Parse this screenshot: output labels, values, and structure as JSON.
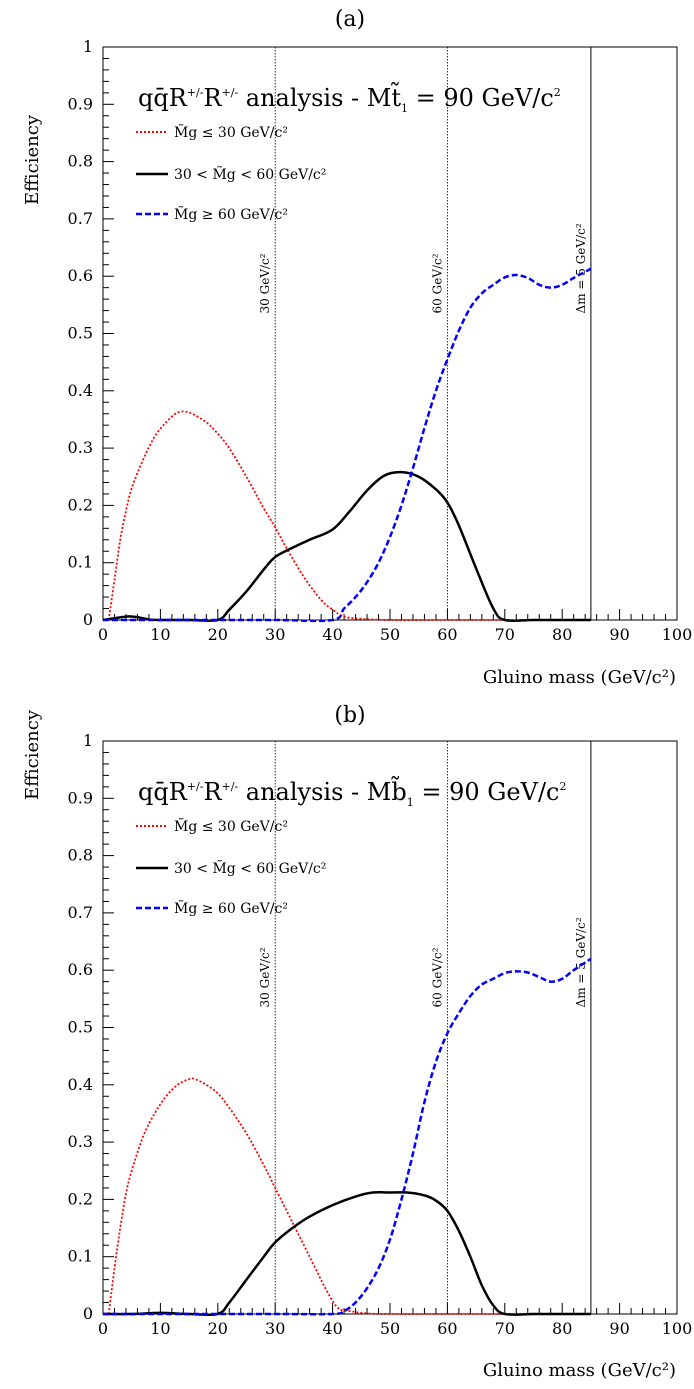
{
  "chart_data": [
    {
      "type": "line",
      "panel_label": "(a)",
      "title": {
        "main": "qq̄R",
        "sup1": "+/-",
        "mid": "R",
        "sup2": "+/-",
        "rest": " analysis - M",
        "tilde_letter": "t̃",
        "sub": "1",
        "eq": " = 90 GeV/c",
        "sup3": "2"
      },
      "xlabel": "Gluino mass (GeV/c²)",
      "ylabel": "Efficiency",
      "xlim": [
        0,
        100
      ],
      "ylim": [
        0,
        1
      ],
      "xticks": [
        "0",
        "10",
        "20",
        "30",
        "40",
        "50",
        "60",
        "70",
        "80",
        "90",
        "100"
      ],
      "yticks": [
        "0",
        "0.1",
        "0.2",
        "0.3",
        "0.4",
        "0.5",
        "0.6",
        "0.7",
        "0.8",
        "0.9",
        "1"
      ],
      "vlines": [
        {
          "x": 30,
          "label": "30 GeV/c²",
          "style": "dotted"
        },
        {
          "x": 60,
          "label": "60 GeV/c²",
          "style": "dotted"
        },
        {
          "x": 85,
          "label": "Δm = 5 GeV/c²",
          "style": "solid"
        }
      ],
      "series": [
        {
          "name": "M̃g ≤ 30 GeV/c²",
          "color": "#ff0000",
          "style": "dotted",
          "x": [
            1,
            2,
            3,
            4,
            5,
            7,
            9,
            11,
            13,
            15,
            18,
            20,
            22,
            25,
            28,
            30,
            32,
            35,
            38,
            40,
            42,
            45,
            50,
            60,
            70,
            80,
            85
          ],
          "y": [
            0.0,
            0.07,
            0.14,
            0.19,
            0.23,
            0.28,
            0.32,
            0.345,
            0.362,
            0.362,
            0.345,
            0.325,
            0.3,
            0.25,
            0.195,
            0.162,
            0.125,
            0.075,
            0.035,
            0.018,
            0.006,
            0.002,
            0.0,
            0.0,
            0.0,
            0.0,
            0.0
          ]
        },
        {
          "name": "30 < M̃g < 60 GeV/c²",
          "color": "#000000",
          "style": "solid",
          "x": [
            0,
            2,
            4,
            5,
            6,
            8,
            10,
            15,
            20,
            22,
            25,
            28,
            30,
            33,
            36,
            40,
            43,
            46,
            49,
            52,
            55,
            58,
            60,
            62,
            65,
            68,
            70,
            75,
            80,
            85
          ],
          "y": [
            0.0,
            0.003,
            0.006,
            0.006,
            0.005,
            0.001,
            0.0,
            0.0,
            0.0,
            0.018,
            0.05,
            0.088,
            0.11,
            0.126,
            0.14,
            0.158,
            0.19,
            0.226,
            0.252,
            0.258,
            0.25,
            0.228,
            0.205,
            0.165,
            0.09,
            0.02,
            0.0,
            0.0,
            0.0,
            0.0
          ]
        },
        {
          "name": "M̃g ≥ 60 GeV/c²",
          "color": "#0000ff",
          "style": "dashed",
          "x": [
            0,
            10,
            20,
            30,
            40,
            42,
            44,
            46,
            48,
            50,
            52,
            54,
            56,
            58,
            60,
            62,
            64,
            66,
            68,
            70,
            72,
            74,
            76,
            78,
            80,
            82,
            85
          ],
          "y": [
            0.0,
            0.0,
            0.0,
            0.0,
            0.0,
            0.02,
            0.04,
            0.066,
            0.1,
            0.145,
            0.2,
            0.265,
            0.335,
            0.4,
            0.455,
            0.505,
            0.545,
            0.57,
            0.585,
            0.598,
            0.602,
            0.597,
            0.585,
            0.58,
            0.585,
            0.597,
            0.613
          ]
        }
      ]
    },
    {
      "type": "line",
      "panel_label": "(b)",
      "title": {
        "main": "qq̄R",
        "sup1": "+/-",
        "mid": "R",
        "sup2": "+/-",
        "rest": " analysis - M",
        "tilde_letter": "b̃",
        "sub": "1",
        "eq": " = 90 GeV/c",
        "sup3": "2"
      },
      "xlabel": "Gluino mass (GeV/c²)",
      "ylabel": "Efficiency",
      "xlim": [
        0,
        100
      ],
      "ylim": [
        0,
        1
      ],
      "xticks": [
        "0",
        "10",
        "20",
        "30",
        "40",
        "50",
        "60",
        "70",
        "80",
        "90",
        "100"
      ],
      "yticks": [
        "0",
        "0.1",
        "0.2",
        "0.3",
        "0.4",
        "0.5",
        "0.6",
        "0.7",
        "0.8",
        "0.9",
        "1"
      ],
      "vlines": [
        {
          "x": 30,
          "label": "30 GeV/c²",
          "style": "dotted"
        },
        {
          "x": 60,
          "label": "60 GeV/c²",
          "style": "dotted"
        },
        {
          "x": 85,
          "label": "Δm = 5 GeV/c²",
          "style": "solid"
        }
      ],
      "series": [
        {
          "name": "M̃g ≤ 30 GeV/c²",
          "color": "#ff0000",
          "style": "dotted",
          "x": [
            1,
            2,
            3,
            4,
            5,
            7,
            9,
            11,
            13,
            15,
            16,
            18,
            20,
            22,
            25,
            28,
            30,
            33,
            36,
            39,
            41,
            43,
            46,
            50,
            60,
            70,
            80,
            85
          ],
          "y": [
            0.0,
            0.08,
            0.15,
            0.21,
            0.25,
            0.31,
            0.35,
            0.38,
            0.4,
            0.41,
            0.41,
            0.4,
            0.385,
            0.36,
            0.315,
            0.26,
            0.22,
            0.16,
            0.1,
            0.04,
            0.01,
            0.005,
            0.001,
            0.0,
            0.0,
            0.0,
            0.0,
            0.0
          ]
        },
        {
          "name": "30 < M̃g < 60 GeV/c²",
          "color": "#000000",
          "style": "solid",
          "x": [
            0,
            5,
            10,
            15,
            20,
            22,
            25,
            28,
            30,
            33,
            36,
            40,
            44,
            47,
            50,
            53,
            56,
            58,
            60,
            62,
            64,
            66,
            68,
            70,
            75,
            80,
            85
          ],
          "y": [
            0.0,
            0.0,
            0.002,
            0.0,
            0.0,
            0.02,
            0.06,
            0.1,
            0.125,
            0.15,
            0.17,
            0.19,
            0.205,
            0.212,
            0.212,
            0.212,
            0.207,
            0.198,
            0.18,
            0.145,
            0.1,
            0.05,
            0.015,
            0.0,
            0.0,
            0.0,
            0.0
          ]
        },
        {
          "name": "M̃g ≥ 60 GeV/c²",
          "color": "#0000ff",
          "style": "dashed",
          "x": [
            0,
            10,
            20,
            30,
            40,
            42,
            44,
            46,
            48,
            50,
            52,
            54,
            56,
            58,
            60,
            62,
            64,
            66,
            68,
            70,
            72,
            74,
            76,
            78,
            80,
            82,
            85
          ],
          "y": [
            0.0,
            0.0,
            0.0,
            0.0,
            0.0,
            0.005,
            0.02,
            0.045,
            0.08,
            0.13,
            0.2,
            0.28,
            0.37,
            0.44,
            0.49,
            0.525,
            0.555,
            0.575,
            0.585,
            0.595,
            0.598,
            0.596,
            0.588,
            0.58,
            0.585,
            0.6,
            0.62
          ]
        }
      ]
    }
  ]
}
